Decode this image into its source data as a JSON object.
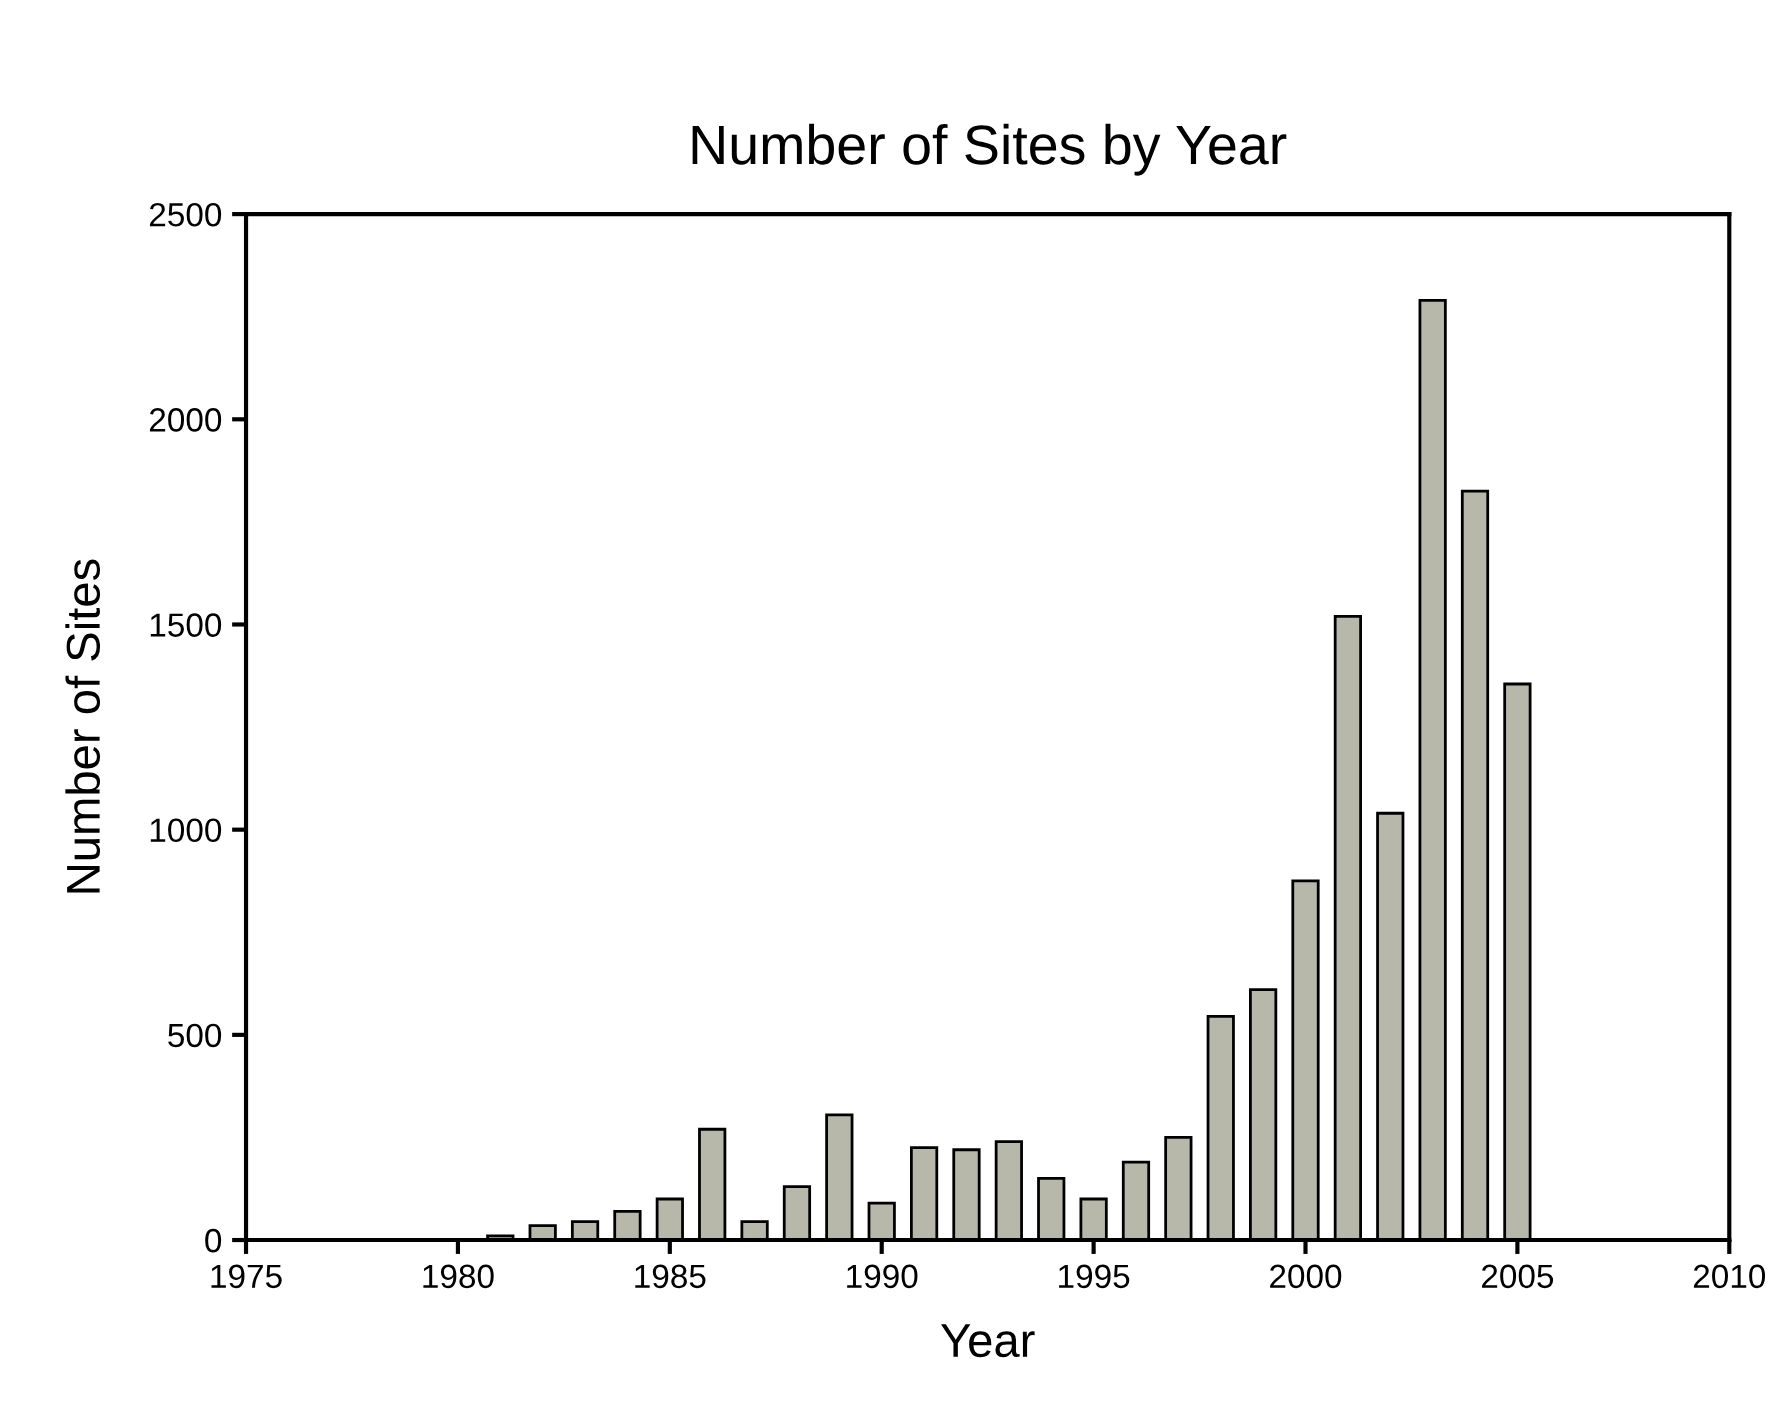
{
  "chart_data": {
    "type": "bar",
    "title": "Number of Sites by Year",
    "xlabel": "Year",
    "ylabel": "Number of Sites",
    "x": [
      1981,
      1982,
      1983,
      1984,
      1985,
      1986,
      1987,
      1988,
      1989,
      1990,
      1991,
      1992,
      1993,
      1994,
      1995,
      1996,
      1997,
      1998,
      1999,
      2000,
      2001,
      2002,
      2003,
      2004,
      2005
    ],
    "values": [
      10,
      35,
      45,
      70,
      100,
      270,
      45,
      130,
      305,
      90,
      225,
      220,
      240,
      150,
      100,
      190,
      250,
      545,
      610,
      875,
      1520,
      1040,
      2290,
      1825,
      1355
    ],
    "color": "#b8b8aa",
    "xlim": [
      1975,
      2010
    ],
    "xticks": [
      1975,
      1980,
      1985,
      1990,
      1995,
      2000,
      2005,
      2010
    ],
    "ylim": [
      0,
      2500
    ],
    "yticks": [
      0,
      500,
      1000,
      1500,
      2000,
      2500
    ],
    "grid": false,
    "legend": false
  }
}
